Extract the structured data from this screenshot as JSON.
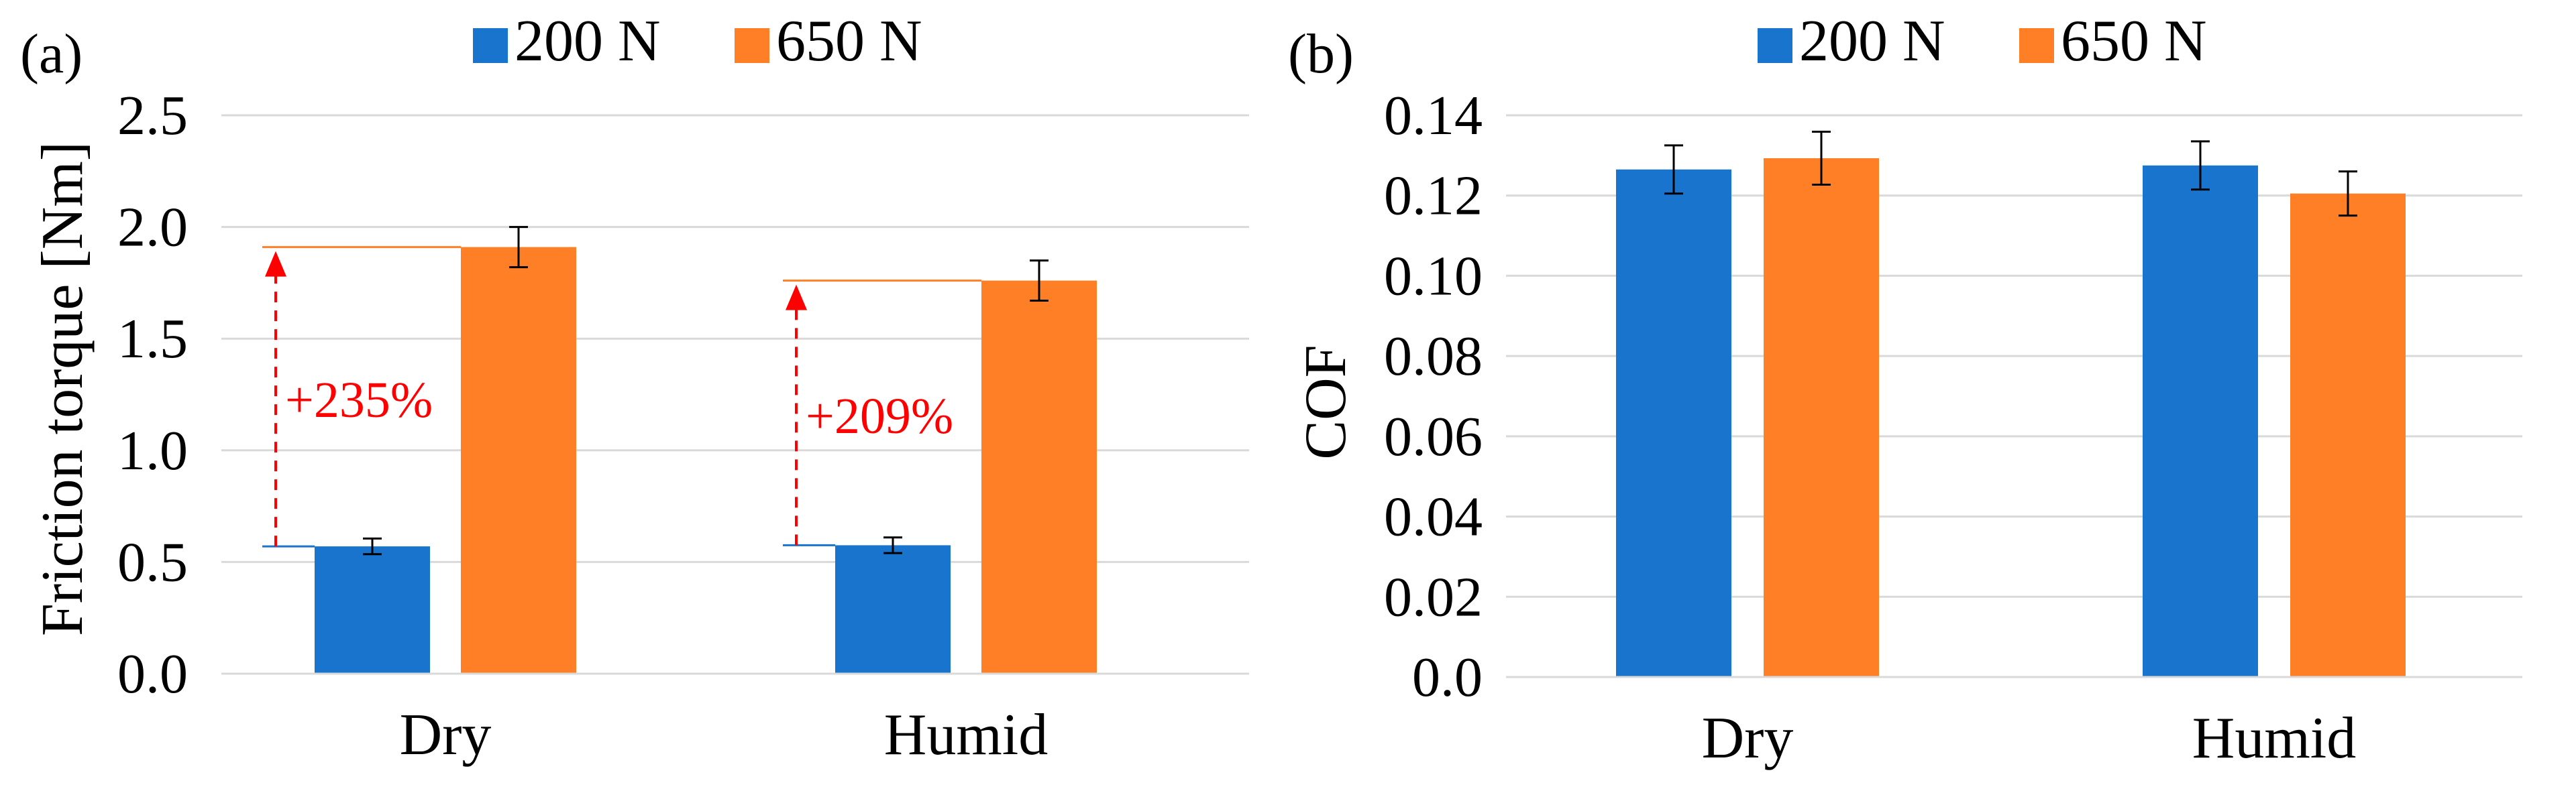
{
  "chart_data": [
    {
      "panel_label": "(a)",
      "type": "bar",
      "categories": [
        "Dry",
        "Humid"
      ],
      "series": [
        {
          "name": "200 N",
          "color": "#1874CD",
          "values": [
            0.57,
            0.575
          ],
          "errors": [
            0.035,
            0.035
          ]
        },
        {
          "name": "650 N",
          "color": "#FF7F27",
          "values": [
            1.91,
            1.76
          ],
          "errors": [
            0.09,
            0.09
          ]
        }
      ],
      "ylabel": "Friction torque [Nm]",
      "xlabel": "",
      "ylim": [
        0,
        2.5
      ],
      "yticks": [
        0,
        0.5,
        1.0,
        1.5,
        2.0,
        2.5
      ],
      "ytick_labels": [
        "0.0",
        "0.5",
        "1.0",
        "1.5",
        "2.0",
        "2.5"
      ],
      "grid": true,
      "legend": "top-center",
      "annotations": [
        {
          "category": "Dry",
          "text": "+235%",
          "from": 0.57,
          "to": 1.91,
          "color": "#FF0000"
        },
        {
          "category": "Humid",
          "text": "+209%",
          "from": 0.575,
          "to": 1.76,
          "color": "#FF0000"
        }
      ]
    },
    {
      "panel_label": "(b)",
      "type": "bar",
      "categories": [
        "Dry",
        "Humid"
      ],
      "series": [
        {
          "name": "200 N",
          "color": "#1874CD",
          "values": [
            0.1265,
            0.1275
          ],
          "errors": [
            0.006,
            0.006
          ]
        },
        {
          "name": "650 N",
          "color": "#FF7F27",
          "values": [
            0.1293,
            0.1205
          ],
          "errors": [
            0.0066,
            0.0055
          ]
        }
      ],
      "ylabel": "COF",
      "xlabel": "",
      "ylim": [
        0,
        0.14
      ],
      "yticks": [
        0,
        0.02,
        0.04,
        0.06,
        0.08,
        0.1,
        0.12,
        0.14
      ],
      "ytick_labels": [
        "0.0",
        "0.02",
        "0.04",
        "0.06",
        "0.08",
        "0.10",
        "0.12",
        "0.14"
      ],
      "grid": true,
      "legend": "top-center",
      "annotations": []
    }
  ]
}
